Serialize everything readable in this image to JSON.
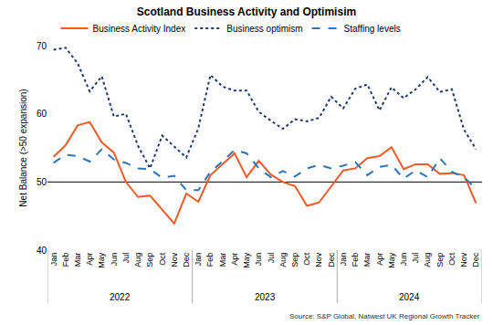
{
  "chart_data": {
    "type": "line",
    "title": "Scotland Business Activity and Optimisim",
    "y_label": "Net Balance (>50 expansion)",
    "source": "Source: S&P Global, Natwest UK Regional Growth Tracker",
    "categories": [
      [
        "2022",
        "Jan"
      ],
      [
        "2022",
        "Feb"
      ],
      [
        "2022",
        "Mar"
      ],
      [
        "2022",
        "Apr"
      ],
      [
        "2022",
        "May"
      ],
      [
        "2022",
        "Jun"
      ],
      [
        "2022",
        "Jul"
      ],
      [
        "2022",
        "Aug"
      ],
      [
        "2022",
        "Sep"
      ],
      [
        "2022",
        "Oct"
      ],
      [
        "2022",
        "Nov"
      ],
      [
        "2022",
        "Dec"
      ],
      [
        "2023",
        "Jan"
      ],
      [
        "2023",
        "Feb"
      ],
      [
        "2023",
        "Mar"
      ],
      [
        "2023",
        "Apr"
      ],
      [
        "2023",
        "May"
      ],
      [
        "2023",
        "Jun"
      ],
      [
        "2023",
        "Jul"
      ],
      [
        "2023",
        "Aug"
      ],
      [
        "2023",
        "Sep"
      ],
      [
        "2023",
        "Oct"
      ],
      [
        "2023",
        "Nov"
      ],
      [
        "2023",
        "Dec"
      ],
      [
        "2024",
        "Jan"
      ],
      [
        "2024",
        "Feb"
      ],
      [
        "2024",
        "Mar"
      ],
      [
        "2024",
        "Apr"
      ],
      [
        "2024",
        "May"
      ],
      [
        "2024",
        "Jun"
      ],
      [
        "2024",
        "Jul"
      ],
      [
        "2024",
        "Aug"
      ],
      [
        "2024",
        "Sep"
      ],
      [
        "2024",
        "Oct"
      ],
      [
        "2024",
        "Nov"
      ],
      [
        "2024",
        "Dec"
      ]
    ],
    "series": [
      {
        "name": "Business Activity Index",
        "color": "#f05a28",
        "line_style": "solid",
        "values": [
          53.7,
          55.4,
          58.3,
          58.8,
          55.8,
          54.3,
          50.0,
          47.8,
          48.0,
          45.9,
          43.9,
          48.3,
          47.1,
          51.0,
          52.6,
          54.2,
          50.7,
          53.1,
          51.1,
          50.0,
          49.4,
          46.5,
          47.0,
          49.3,
          51.7,
          52.0,
          53.5,
          53.8,
          55.1,
          51.9,
          52.6,
          52.6,
          51.2,
          51.3,
          51.0,
          46.9
        ]
      },
      {
        "name": "Business optimism",
        "color": "#1f3a6e",
        "line_style": "dotted",
        "values": [
          69.4,
          69.7,
          67.4,
          63.3,
          65.5,
          59.6,
          60.0,
          55.3,
          52.0,
          56.8,
          55.2,
          53.6,
          57.9,
          65.7,
          64.0,
          63.4,
          63.4,
          60.3,
          59.0,
          57.8,
          59.2,
          58.9,
          59.4,
          62.5,
          60.8,
          63.7,
          64.3,
          60.5,
          63.9,
          62.3,
          63.6,
          65.4,
          63.2,
          63.6,
          57.7,
          54.8
        ]
      },
      {
        "name": "Staffing levels",
        "color": "#2e75b6",
        "line_style": "dashed",
        "values": [
          52.8,
          54.0,
          53.8,
          53.0,
          54.8,
          53.3,
          52.8,
          52.0,
          51.9,
          50.6,
          50.9,
          48.8,
          48.8,
          51.5,
          53.0,
          54.7,
          54.2,
          52.0,
          50.7,
          51.6,
          50.8,
          52.0,
          52.5,
          52.0,
          52.4,
          52.9,
          51.0,
          52.2,
          52.5,
          50.5,
          51.7,
          50.7,
          53.5,
          51.5,
          50.7,
          49.0
        ]
      }
    ],
    "ylim": [
      40,
      70
    ],
    "yticks": [
      40,
      50,
      60,
      70
    ],
    "reference_line": 50,
    "grid": false,
    "legend": "top"
  }
}
